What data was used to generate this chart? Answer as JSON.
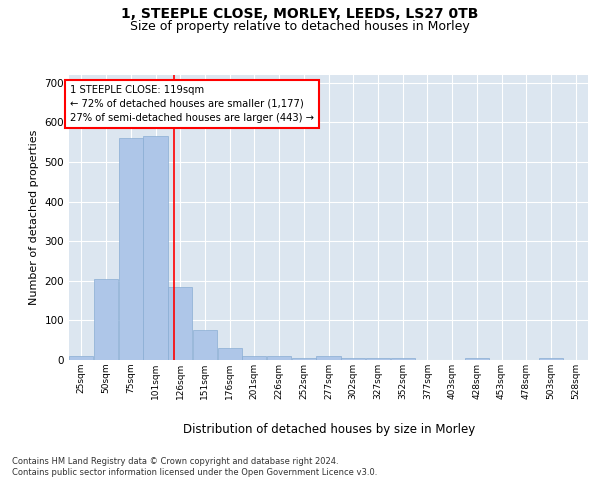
{
  "title1": "1, STEEPLE CLOSE, MORLEY, LEEDS, LS27 0TB",
  "title2": "Size of property relative to detached houses in Morley",
  "xlabel": "Distribution of detached houses by size in Morley",
  "ylabel": "Number of detached properties",
  "bar_color": "#aec6e8",
  "bar_edge_color": "#8aadd4",
  "background_color": "#dce6f0",
  "grid_color": "#ffffff",
  "annotation_text": "1 STEEPLE CLOSE: 119sqm\n← 72% of detached houses are smaller (1,177)\n27% of semi-detached houses are larger (443) →",
  "red_line_x": 119,
  "categories": [
    "25sqm",
    "50sqm",
    "75sqm",
    "101sqm",
    "126sqm",
    "151sqm",
    "176sqm",
    "201sqm",
    "226sqm",
    "252sqm",
    "277sqm",
    "302sqm",
    "327sqm",
    "352sqm",
    "377sqm",
    "403sqm",
    "428sqm",
    "453sqm",
    "478sqm",
    "503sqm",
    "528sqm"
  ],
  "bin_edges": [
    12.5,
    37.5,
    62.5,
    87.5,
    112.5,
    137.5,
    162.5,
    187.5,
    212.5,
    237.5,
    262.5,
    287.5,
    312.5,
    337.5,
    362.5,
    387.5,
    412.5,
    437.5,
    462.5,
    487.5,
    512.5,
    537.5
  ],
  "values": [
    10,
    205,
    560,
    565,
    185,
    75,
    30,
    10,
    10,
    5,
    10,
    5,
    5,
    5,
    0,
    0,
    5,
    0,
    0,
    5,
    0
  ],
  "ylim": [
    0,
    720
  ],
  "yticks": [
    0,
    100,
    200,
    300,
    400,
    500,
    600,
    700
  ],
  "footer_text": "Contains HM Land Registry data © Crown copyright and database right 2024.\nContains public sector information licensed under the Open Government Licence v3.0.",
  "title1_fontsize": 10,
  "title2_fontsize": 9,
  "xlabel_fontsize": 8.5,
  "ylabel_fontsize": 8
}
